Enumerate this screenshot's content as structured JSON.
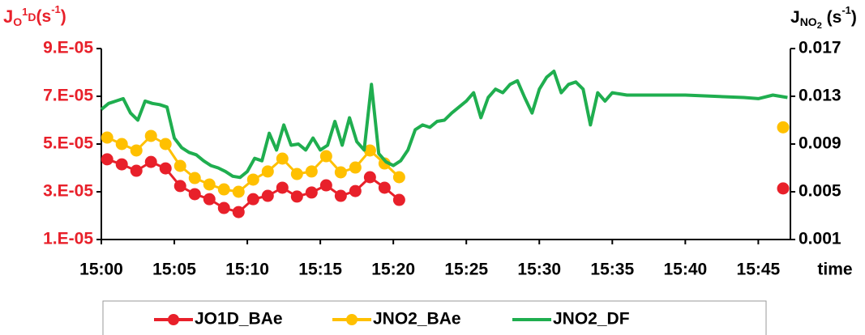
{
  "chart_data": {
    "type": "line",
    "ylabel_parts": [
      "J",
      "O",
      "1",
      "D",
      "(s",
      "-1",
      ")"
    ],
    "y2label_parts": [
      "J",
      "NO",
      "2",
      " (s",
      "-1",
      ")"
    ],
    "xlabel": "time",
    "xlim": [
      0,
      47.2
    ],
    "xticks": [
      {
        "value": 0,
        "label": "15:00"
      },
      {
        "value": 5,
        "label": "15:05"
      },
      {
        "value": 10,
        "label": "15:10"
      },
      {
        "value": 15,
        "label": "15:15"
      },
      {
        "value": 20,
        "label": "15:20"
      },
      {
        "value": 25,
        "label": "15:25"
      },
      {
        "value": 30,
        "label": "15:30"
      },
      {
        "value": 35,
        "label": "15:35"
      },
      {
        "value": 40,
        "label": "15:40"
      },
      {
        "value": 45,
        "label": "15:45"
      }
    ],
    "ylim": [
      1e-05,
      9e-05
    ],
    "yticks": [
      {
        "value": 1e-05,
        "label": "1.E-05"
      },
      {
        "value": 3e-05,
        "label": "3.E-05"
      },
      {
        "value": 5e-05,
        "label": "5.E-05"
      },
      {
        "value": 7e-05,
        "label": "7.E-05"
      },
      {
        "value": 9e-05,
        "label": "9.E-05"
      }
    ],
    "y2lim": [
      0.001,
      0.017
    ],
    "y2ticks": [
      0.001,
      0.005,
      0.009,
      0.013,
      0.017
    ],
    "ylabel_color": "#e8202a",
    "legend": "bottom",
    "series": [
      {
        "name": "JO1D_BAe",
        "color": "#e8202a",
        "axis": "y",
        "markers": true,
        "x": [
          0.4,
          1.4,
          2.4,
          3.4,
          4.4,
          5.4,
          6.4,
          7.4,
          8.4,
          9.4,
          10.4,
          11.4,
          12.4,
          13.4,
          14.4,
          15.4,
          16.4,
          17.4,
          18.4,
          19.4,
          20.4,
          null,
          46.7
        ],
        "values": [
          4.36e-05,
          4.15e-05,
          3.88e-05,
          4.25e-05,
          3.98e-05,
          3.24e-05,
          2.9e-05,
          2.69e-05,
          2.32e-05,
          2.15e-05,
          2.69e-05,
          2.83e-05,
          3.17e-05,
          2.8e-05,
          2.97e-05,
          3.27e-05,
          2.83e-05,
          3.03e-05,
          3.61e-05,
          3.17e-05,
          2.66e-05,
          null,
          3.14e-05
        ]
      },
      {
        "name": "JNO2_BAe",
        "color": "#ffc000",
        "axis": "y2",
        "markers": true,
        "x": [
          0.4,
          1.4,
          2.4,
          3.4,
          4.4,
          5.4,
          6.4,
          7.4,
          8.4,
          9.4,
          10.4,
          11.4,
          12.4,
          13.4,
          14.4,
          15.4,
          16.4,
          17.4,
          18.4,
          19.4,
          20.4,
          null,
          46.7
        ],
        "values": [
          0.00954,
          0.009,
          0.00846,
          0.00968,
          0.009,
          0.00717,
          0.00615,
          0.00561,
          0.0052,
          0.005,
          0.00602,
          0.0067,
          0.00778,
          0.00649,
          0.0067,
          0.00798,
          0.00663,
          0.00703,
          0.00846,
          0.00737,
          0.00622,
          null,
          0.0104
        ]
      },
      {
        "name": "JNO2_DF",
        "color": "#1fae4f",
        "axis": "y2",
        "markers": false,
        "x": [
          0,
          0.5,
          1,
          1.5,
          2,
          2.5,
          3,
          3.5,
          4,
          4.5,
          5,
          5.5,
          6,
          6.5,
          7,
          7.5,
          8,
          8.5,
          9,
          9.5,
          10,
          10.5,
          11,
          11.5,
          12,
          12.5,
          13,
          13.5,
          14,
          14.5,
          15,
          15.5,
          16,
          16.5,
          17,
          17.5,
          18,
          18.5,
          19,
          19.5,
          20,
          20.5,
          21,
          21.5,
          22,
          22.5,
          23,
          23.5,
          24,
          24.5,
          25,
          25.5,
          26,
          26.5,
          27,
          27.5,
          28,
          28.5,
          29,
          29.5,
          30,
          30.5,
          31,
          31.5,
          32,
          32.5,
          33,
          33.5,
          34,
          34.5,
          35,
          36,
          38,
          40,
          42,
          44,
          45,
          46,
          47
        ],
        "values": [
          0.0119,
          0.0124,
          0.0126,
          0.0128,
          0.0116,
          0.011,
          0.0126,
          0.0124,
          0.0123,
          0.0121,
          0.0095,
          0.0087,
          0.0083,
          0.0081,
          0.0076,
          0.0072,
          0.007,
          0.0067,
          0.0063,
          0.0062,
          0.0067,
          0.0078,
          0.0076,
          0.0099,
          0.0085,
          0.0106,
          0.0089,
          0.009,
          0.0085,
          0.0095,
          0.0085,
          0.0089,
          0.0109,
          0.0089,
          0.0112,
          0.0092,
          0.0085,
          0.014,
          0.0082,
          0.0075,
          0.0072,
          0.0076,
          0.0085,
          0.0102,
          0.0106,
          0.0104,
          0.0109,
          0.011,
          0.0116,
          0.0121,
          0.0126,
          0.0133,
          0.0112,
          0.0129,
          0.0136,
          0.0133,
          0.014,
          0.0143,
          0.0129,
          0.0116,
          0.0136,
          0.0146,
          0.0151,
          0.0133,
          0.014,
          0.0142,
          0.0136,
          0.0106,
          0.0133,
          0.0126,
          0.0133,
          0.0131,
          0.0131,
          0.0131,
          0.013,
          0.0129,
          0.0128,
          0.0131,
          0.0129
        ]
      }
    ]
  }
}
